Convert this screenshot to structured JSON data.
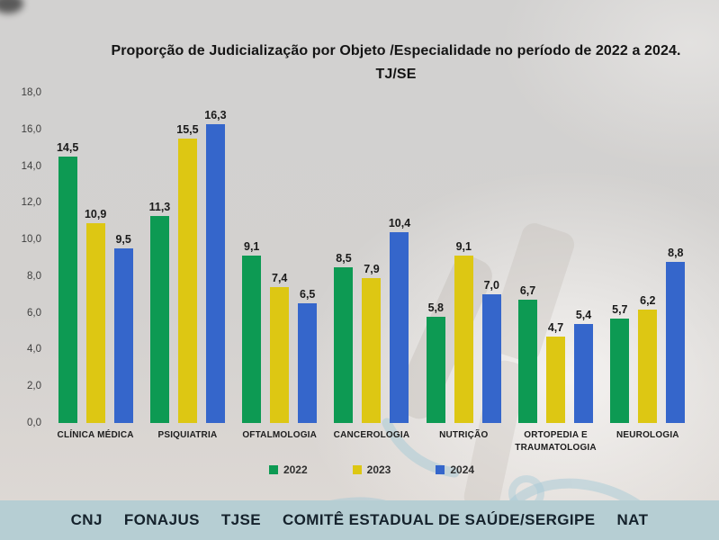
{
  "page": {
    "background_color": "#d2d1d0",
    "footer_background_color": "#b6ced3"
  },
  "chart_data": {
    "type": "bar",
    "title": "Proporção de Judicialização por Objeto /Especialidade no período de 2022 a 2024. TJ/SE",
    "xlabel": "",
    "ylabel": "",
    "categories": [
      "CLÍNICA MÉDICA",
      "PSIQUIATRIA",
      "OFTALMOLOGIA",
      "CANCEROLOGIA",
      "NUTRIÇÃO",
      "ORTOPEDIA E TRAUMATOLOGIA",
      "NEUROLOGIA"
    ],
    "series": [
      {
        "name": "2022",
        "color": "#0d9a53",
        "values": [
          14.5,
          11.3,
          9.1,
          8.5,
          5.8,
          6.7,
          5.7
        ]
      },
      {
        "name": "2023",
        "color": "#ddc713",
        "values": [
          10.9,
          15.5,
          7.4,
          7.9,
          9.1,
          4.7,
          6.2
        ]
      },
      {
        "name": "2024",
        "color": "#3566cb",
        "values": [
          9.5,
          16.3,
          6.5,
          10.4,
          7.0,
          5.4,
          8.8
        ]
      }
    ],
    "ylim": [
      0,
      18
    ],
    "yticks": [
      0,
      2,
      4,
      6,
      8,
      10,
      12,
      14,
      16,
      18
    ],
    "decimal_separator": ",",
    "grid": false,
    "value_labels": true,
    "legend_position": "bottom"
  },
  "footer": {
    "items": [
      "CNJ",
      "FONAJUS",
      "TJSE",
      "COMITÊ ESTADUAL DE SAÚDE/SERGIPE",
      "NAT"
    ]
  }
}
